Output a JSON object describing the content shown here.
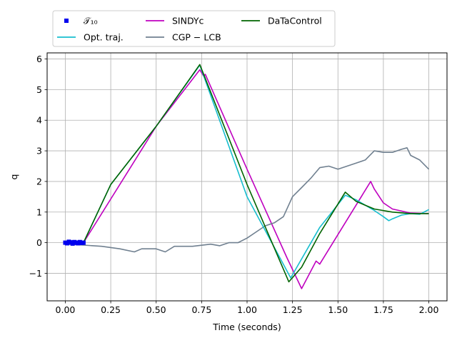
{
  "chart_data": {
    "type": "line",
    "title": "",
    "xlabel": "Time (seconds)",
    "ylabel": "q",
    "xlim": [
      -0.1,
      2.1
    ],
    "ylim": [
      -1.9,
      6.2
    ],
    "xticks": [
      0.0,
      0.25,
      0.5,
      0.75,
      1.0,
      1.25,
      1.5,
      1.75,
      2.0
    ],
    "xtick_labels": [
      "0.00",
      "0.25",
      "0.50",
      "0.75",
      "1.00",
      "1.25",
      "1.50",
      "1.75",
      "2.00"
    ],
    "yticks": [
      -1,
      0,
      1,
      2,
      3,
      4,
      5,
      6
    ],
    "ytick_labels": [
      "−1",
      "0",
      "1",
      "2",
      "3",
      "4",
      "5",
      "6"
    ],
    "grid": true,
    "legend_position": "top-left, above plot",
    "legend": [
      {
        "label": "𝒯₁₀",
        "color": "#0000ee",
        "marker": "square"
      },
      {
        "label": "Opt. traj.",
        "color": "#17becf"
      },
      {
        "label": "SINDYc",
        "color": "#bf00bf"
      },
      {
        "label": "CGP − LCB",
        "color": "#708090"
      },
      {
        "label": "DaTaControl",
        "color": "#006400"
      }
    ],
    "series": [
      {
        "name": "𝒯₁₀",
        "color": "#0000ee",
        "x": [
          0.0,
          0.01,
          0.02,
          0.03,
          0.04,
          0.05,
          0.06,
          0.07,
          0.08,
          0.09,
          0.1
        ],
        "y": [
          0.0,
          -0.02,
          0.03,
          0.01,
          -0.03,
          0.02,
          0.0,
          -0.02,
          0.02,
          -0.01,
          0.0
        ]
      },
      {
        "name": "Opt. traj.",
        "color": "#17becf",
        "x": [
          0.1,
          0.25,
          0.5,
          0.74,
          1.0,
          1.24,
          1.4,
          1.54,
          1.6,
          1.7,
          1.75,
          1.78,
          1.8,
          1.85,
          1.9,
          1.95,
          2.0
        ],
        "y": [
          0.0,
          1.9,
          3.8,
          5.8,
          1.5,
          -1.15,
          0.5,
          1.55,
          1.4,
          1.05,
          0.85,
          0.72,
          0.78,
          0.9,
          0.95,
          0.93,
          1.08
        ]
      },
      {
        "name": "SINDYc",
        "color": "#bf00bf",
        "x": [
          0.1,
          0.5,
          0.74,
          0.76,
          0.77,
          1.0,
          1.22,
          1.3,
          1.38,
          1.4,
          1.68,
          1.7,
          1.75,
          1.8,
          1.9,
          2.0
        ],
        "y": [
          0.0,
          3.8,
          5.65,
          5.45,
          5.5,
          2.4,
          -0.5,
          -1.5,
          -0.6,
          -0.7,
          2.0,
          1.75,
          1.3,
          1.1,
          0.97,
          0.95
        ]
      },
      {
        "name": "CGP − LCB",
        "color": "#708090",
        "x": [
          0.0,
          0.1,
          0.2,
          0.3,
          0.38,
          0.42,
          0.5,
          0.55,
          0.6,
          0.7,
          0.8,
          0.85,
          0.9,
          0.95,
          1.0,
          1.05,
          1.1,
          1.15,
          1.2,
          1.25,
          1.3,
          1.35,
          1.4,
          1.45,
          1.5,
          1.55,
          1.6,
          1.65,
          1.7,
          1.75,
          1.8,
          1.85,
          1.88,
          1.9,
          1.95,
          2.0
        ],
        "y": [
          -0.05,
          -0.08,
          -0.12,
          -0.2,
          -0.3,
          -0.2,
          -0.2,
          -0.3,
          -0.12,
          -0.12,
          -0.05,
          -0.1,
          0.0,
          0.0,
          0.15,
          0.35,
          0.55,
          0.65,
          0.85,
          1.5,
          1.8,
          2.1,
          2.45,
          2.5,
          2.4,
          2.5,
          2.6,
          2.7,
          3.0,
          2.95,
          2.95,
          3.05,
          3.1,
          2.85,
          2.7,
          2.4
        ]
      },
      {
        "name": "DaTaControl",
        "color": "#006400",
        "x": [
          0.1,
          0.25,
          0.5,
          0.74,
          1.0,
          1.23,
          1.3,
          1.4,
          1.54,
          1.6,
          1.7,
          1.8,
          1.9,
          2.0
        ],
        "y": [
          0.0,
          1.9,
          3.8,
          5.82,
          1.9,
          -1.28,
          -0.8,
          0.3,
          1.65,
          1.35,
          1.1,
          1.0,
          0.95,
          0.95
        ]
      }
    ]
  }
}
